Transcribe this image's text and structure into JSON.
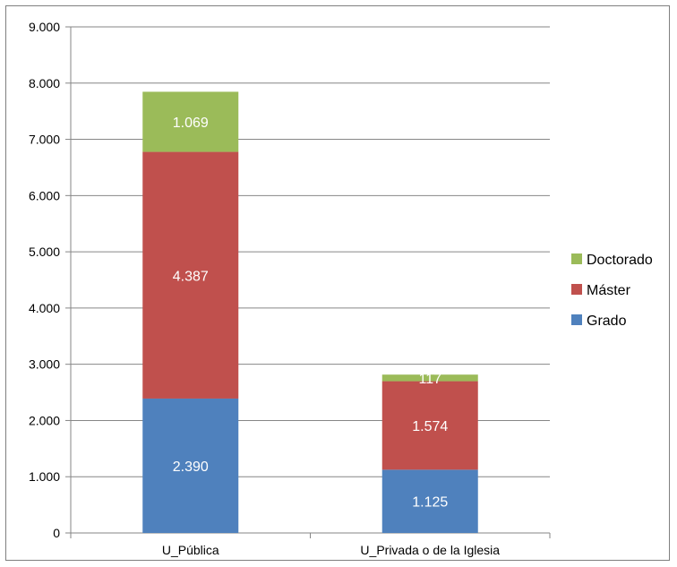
{
  "chart_data": {
    "type": "bar",
    "stacked": true,
    "categories": [
      "U_Pública",
      "U_Privada o de la Iglesia"
    ],
    "series": [
      {
        "name": "Grado",
        "values": [
          2390,
          1125
        ],
        "labels": [
          "2.390",
          "1.125"
        ],
        "color": "#4f81bd"
      },
      {
        "name": "Máster",
        "values": [
          4387,
          1574
        ],
        "labels": [
          "4.387",
          "1.574"
        ],
        "color": "#c0504d"
      },
      {
        "name": "Doctorado",
        "values": [
          1069,
          117
        ],
        "labels": [
          "1.069",
          "117"
        ],
        "color": "#9bbb59"
      }
    ],
    "ylim": [
      0,
      9000
    ],
    "yticks": [
      0,
      1000,
      2000,
      3000,
      4000,
      5000,
      6000,
      7000,
      8000,
      9000
    ],
    "ytick_labels": [
      "0",
      "1.000",
      "2.000",
      "3.000",
      "4.000",
      "5.000",
      "6.000",
      "7.000",
      "8.000",
      "9.000"
    ],
    "grid": true,
    "legend_position": "right",
    "legend_order": [
      "Doctorado",
      "Máster",
      "Grado"
    ],
    "gridline_color": "#868686"
  }
}
